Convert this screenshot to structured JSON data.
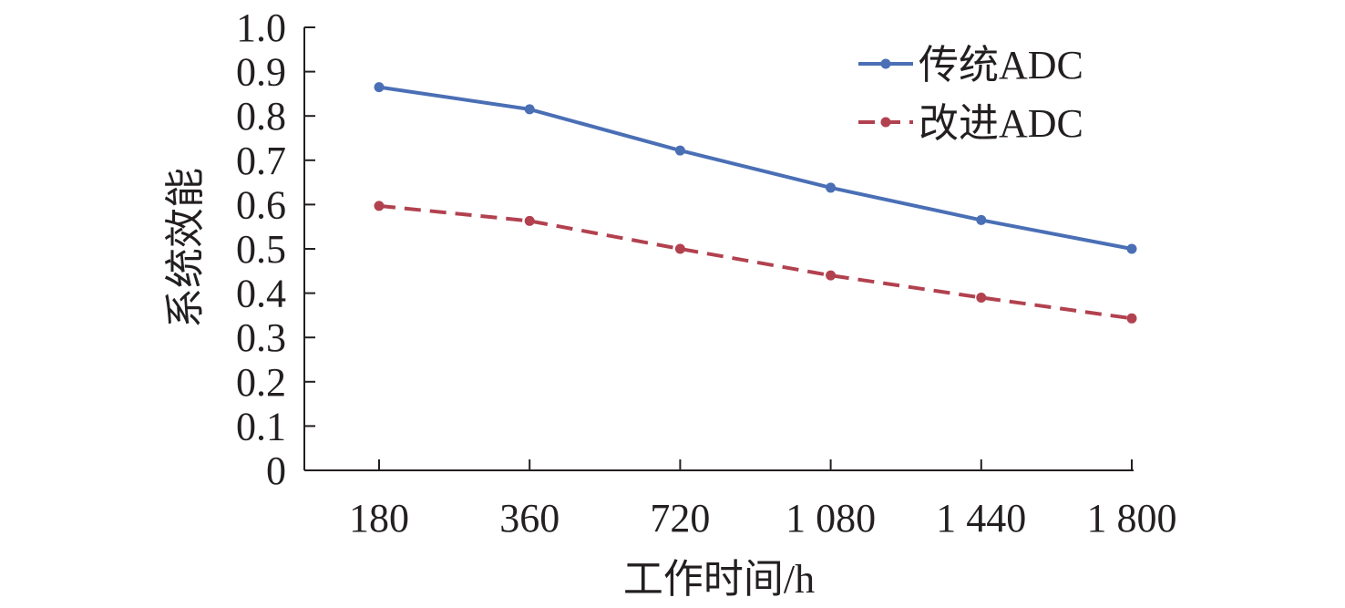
{
  "chart_data": {
    "type": "line",
    "title": "",
    "xlabel": "工作时间/h",
    "ylabel": "系统效能",
    "categories": [
      "180",
      "360",
      "720",
      "1 080",
      "1 440",
      "1 800"
    ],
    "ylim": [
      0,
      1.0
    ],
    "yticks": [
      "0",
      "0.1",
      "0.2",
      "0.3",
      "0.4",
      "0.5",
      "0.6",
      "0.7",
      "0.8",
      "0.9",
      "1.0"
    ],
    "grid": false,
    "legend_position": "top-right",
    "series": [
      {
        "name": "传统ADC",
        "values": [
          0.865,
          0.815,
          0.722,
          0.638,
          0.565,
          0.5
        ],
        "color": "#4a6fb5",
        "line_style": "solid",
        "marker": "circle"
      },
      {
        "name": "改进ADC",
        "values": [
          0.597,
          0.563,
          0.5,
          0.44,
          0.39,
          0.343
        ],
        "color": "#b2414f",
        "line_style": "dashed",
        "marker": "circle"
      }
    ]
  }
}
